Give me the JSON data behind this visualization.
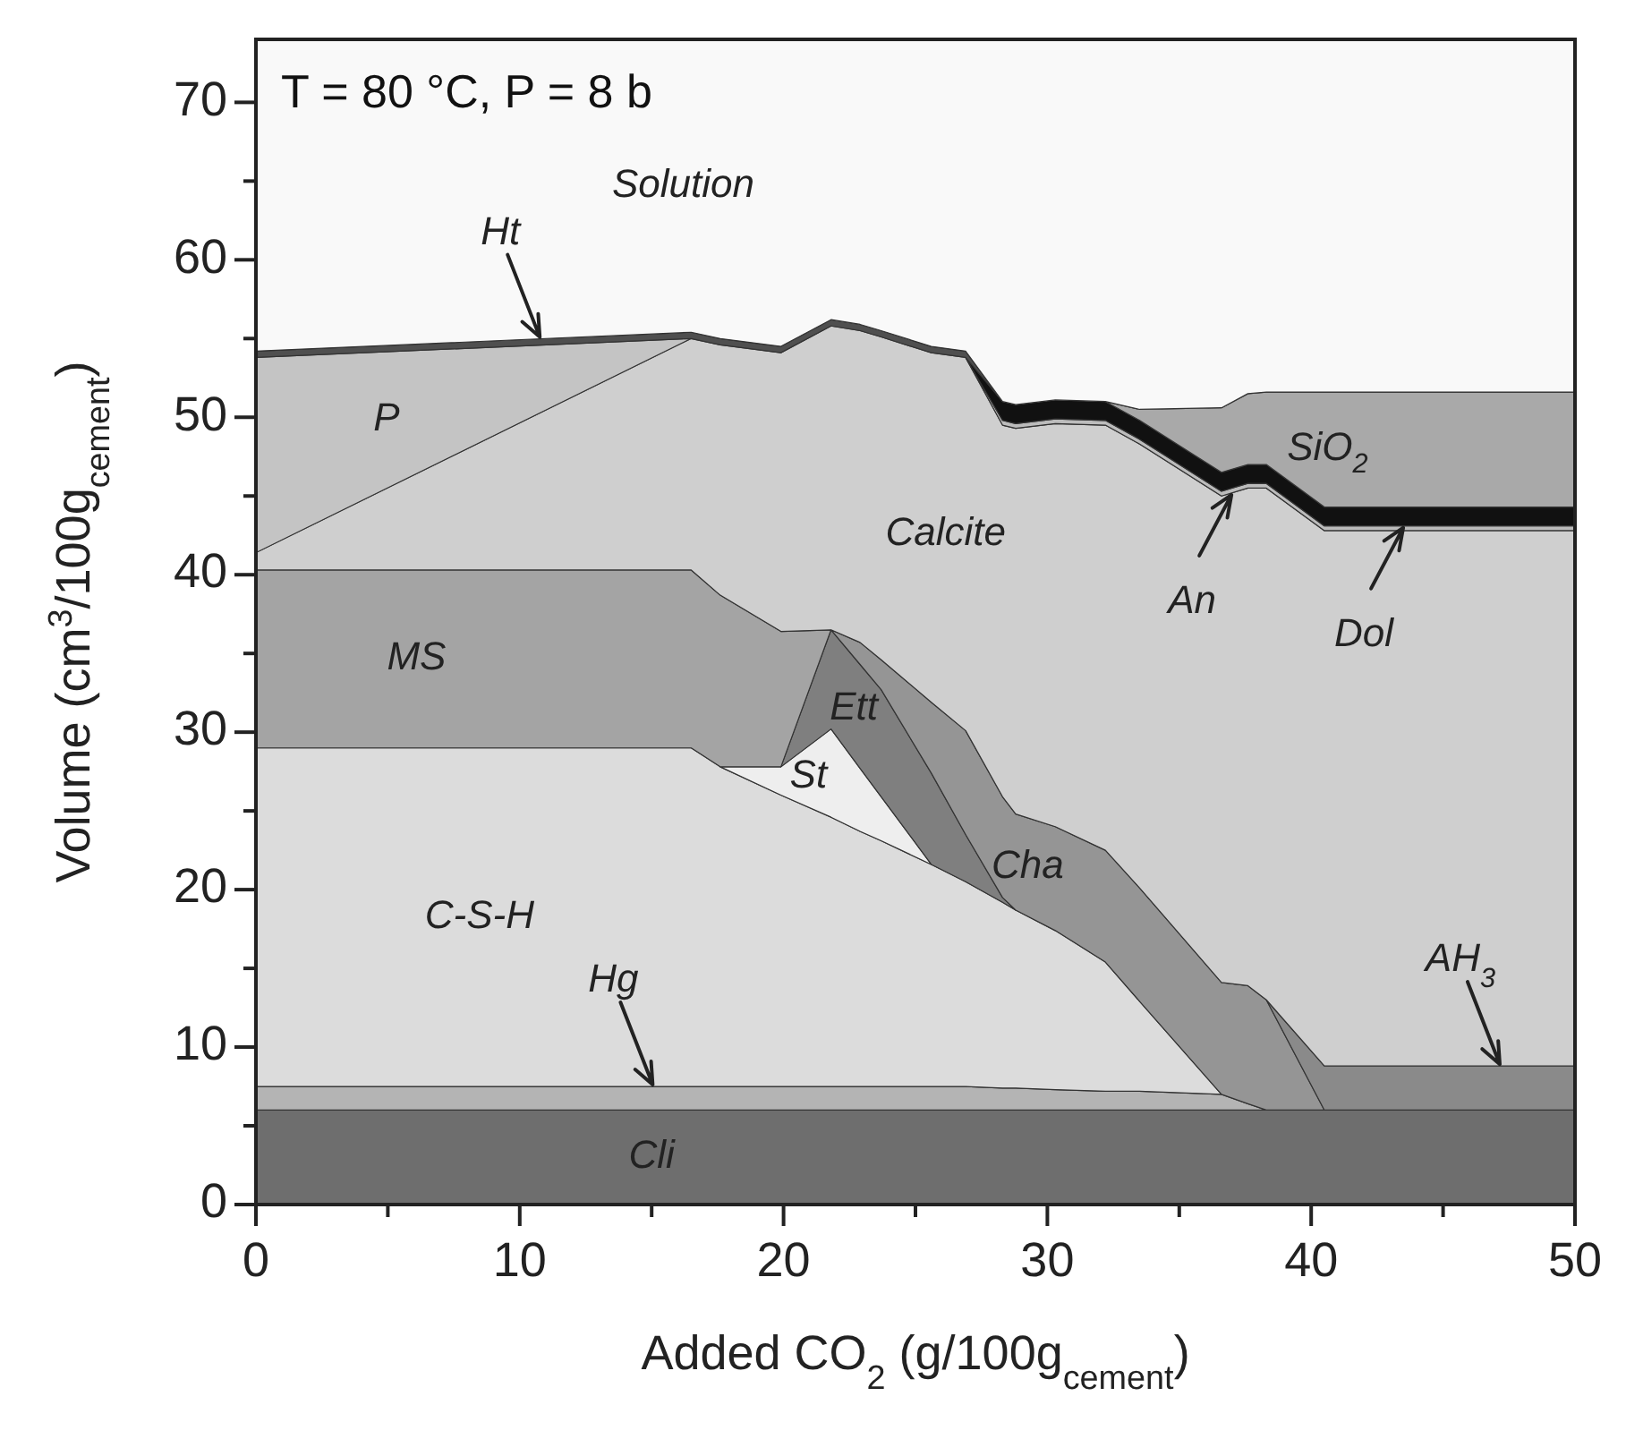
{
  "chart_data": {
    "type": "area",
    "stacked": true,
    "xlabel": "Added CO$_{2}$ (g/100g$_{cement}$)",
    "ylabel": "Volume (cm$^{3}$/100g$_{cement}$)",
    "annotations": [
      "T = 80 °C, P = 8 b"
    ],
    "x": [
      0,
      16.5,
      17.6,
      19.9,
      21.8,
      22.9,
      23.7,
      25.6,
      26.9,
      28.3,
      28.8,
      30.3,
      32.2,
      33.5,
      36.6,
      37.6,
      38.3,
      40.5,
      50
    ],
    "xlim": [
      0,
      50
    ],
    "ylim": [
      0,
      74
    ],
    "xticks": [
      0,
      {
        "value": 5,
        "label": null
      },
      10,
      {
        "value": 15,
        "label": null
      },
      20,
      {
        "value": 25,
        "label": null
      },
      30,
      {
        "value": 35,
        "label": null
      },
      40,
      {
        "value": 45,
        "label": null
      },
      50
    ],
    "yticks": [
      0,
      {
        "value": 5,
        "label": null
      },
      10,
      {
        "value": 15,
        "label": null
      },
      20,
      {
        "value": 25,
        "label": null
      },
      30,
      {
        "value": 35,
        "label": null
      },
      40,
      {
        "value": 45,
        "label": null
      },
      50,
      {
        "value": 55,
        "label": null
      },
      60,
      {
        "value": 65,
        "label": null
      },
      70
    ],
    "series": [
      {
        "name": "Cli",
        "color": "#6e6e6e",
        "values": [
          6,
          6,
          6,
          6,
          6,
          6,
          6,
          6,
          6,
          6,
          6,
          6,
          6,
          6,
          6,
          6,
          6,
          6,
          6
        ]
      },
      {
        "name": "Hg",
        "color": "#b4b4b4",
        "values": [
          1.5,
          1.5,
          1.5,
          1.5,
          1.5,
          1.5,
          1.5,
          1.5,
          1.5,
          1.4,
          1.4,
          1.3,
          1.2,
          1.2,
          1.0,
          0.4,
          0,
          null,
          null
        ]
      },
      {
        "name": "C-S-H",
        "color": "#dcdcdc",
        "values": [
          21.5,
          21.5,
          20.3,
          18.5,
          17.1,
          16.2,
          15.6,
          14.1,
          13.0,
          11.8,
          11.3,
          10.1,
          8.2,
          5.7,
          0,
          null,
          null,
          null,
          null
        ]
      },
      {
        "name": "St",
        "color": "#eeeeee",
        "values": [
          null,
          null,
          0,
          1.8,
          5.6,
          4.0,
          2.8,
          0,
          null,
          null,
          null,
          null,
          null,
          null,
          null,
          null,
          null,
          null,
          null
        ]
      },
      {
        "name": "Ett",
        "color": "#7f7f7f",
        "values": [
          null,
          null,
          null,
          0,
          6.3,
          6.6,
          6.8,
          5.8,
          3.0,
          0.3,
          0,
          null,
          null,
          null,
          null,
          null,
          null,
          null,
          null
        ]
      },
      {
        "name": "MS",
        "color": "#a4a4a4",
        "values": [
          11.3,
          11.3,
          10.9,
          8.6,
          0,
          null,
          null,
          null,
          null,
          null,
          null,
          null,
          null,
          null,
          null,
          null,
          null,
          null,
          null
        ]
      },
      {
        "name": "Cha",
        "color": "#959595",
        "values": [
          null,
          null,
          null,
          null,
          0,
          1.4,
          1.9,
          4.5,
          6.6,
          6.4,
          6.1,
          6.6,
          7.1,
          7.2,
          7.1,
          7.5,
          7.0,
          0,
          null
        ]
      },
      {
        "name": "AH$_{3}$",
        "color": "#8a8a8a",
        "values": [
          null,
          null,
          null,
          null,
          null,
          null,
          null,
          null,
          null,
          null,
          null,
          null,
          null,
          null,
          null,
          null,
          0,
          2.8,
          2.8
        ]
      },
      {
        "name": "Calcite",
        "color": "#cfcfcf",
        "values": [
          1.1,
          14.7,
          15.9,
          17.7,
          19.3,
          19.8,
          20.5,
          22.2,
          23.7,
          23.6,
          24.5,
          25.6,
          27.0,
          28.2,
          30.9,
          31.6,
          32.5,
          34.0,
          34.0
        ]
      },
      {
        "name": "An",
        "color": "#bcbcbc",
        "values": [
          null,
          null,
          null,
          null,
          null,
          null,
          null,
          null,
          0,
          0.3,
          0.3,
          0.3,
          0.3,
          0.3,
          0.3,
          0.3,
          0.3,
          0.3,
          0.3
        ]
      },
      {
        "name": "Dol",
        "color": "#111111",
        "values": [
          null,
          null,
          null,
          null,
          null,
          null,
          null,
          null,
          0,
          1.2,
          1.2,
          1.2,
          1.2,
          1.2,
          1.2,
          1.2,
          1.2,
          1.2,
          1.2
        ]
      },
      {
        "name": "SiO$_{2}$",
        "color": "#a9a9a9",
        "values": [
          null,
          null,
          null,
          null,
          null,
          null,
          null,
          null,
          null,
          null,
          null,
          null,
          0,
          0.7,
          4.1,
          4.5,
          4.6,
          7.3,
          7.3
        ]
      },
      {
        "name": "P",
        "color": "#c4c4c4",
        "values": [
          12.4,
          0,
          null,
          null,
          null,
          null,
          null,
          null,
          null,
          null,
          null,
          null,
          null,
          null,
          null,
          null,
          null,
          null,
          null
        ]
      },
      {
        "name": "Ht",
        "color": "#4f4f4f",
        "values": [
          0.4,
          0.4,
          0.4,
          0.4,
          0.4,
          0.4,
          0.4,
          0.4,
          0.4,
          0,
          null,
          null,
          null,
          null,
          null,
          null,
          null,
          null,
          null
        ]
      },
      {
        "name": "Solution",
        "color": "#f9f9f9",
        "values": [
          19.8,
          18.6,
          19.0,
          19.5,
          17.8,
          18.1,
          18.5,
          19.5,
          19.8,
          23.0,
          23.2,
          22.9,
          23.0,
          23.5,
          23.4,
          22.5,
          22.4,
          22.4,
          22.4
        ]
      }
    ]
  }
}
